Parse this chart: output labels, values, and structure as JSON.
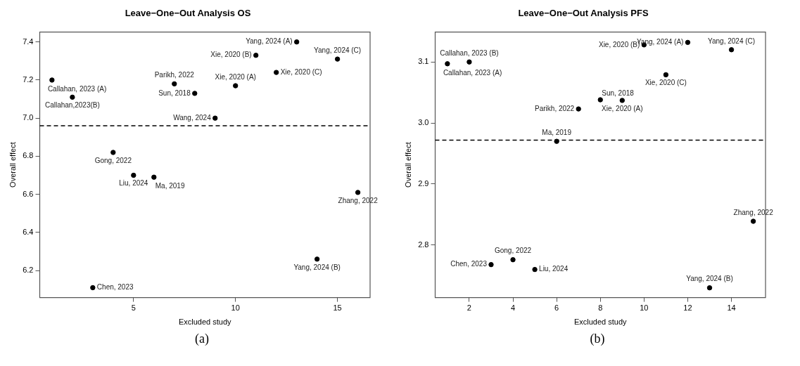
{
  "chart_data": [
    {
      "type": "scatter",
      "title": "Leave−One−Out Analysis OS",
      "xlabel": "Excluded study",
      "ylabel": "Overall effect",
      "x": [
        1,
        2,
        3,
        4,
        5,
        6,
        7,
        8,
        9,
        10,
        11,
        12,
        13,
        14,
        15,
        16
      ],
      "series": [
        {
          "color": "#000000",
          "values": [
            7.2,
            7.11,
            6.11,
            6.82,
            6.7,
            6.69,
            7.18,
            7.13,
            7.0,
            7.17,
            7.33,
            7.24,
            7.4,
            6.26,
            7.31,
            6.61
          ]
        }
      ],
      "xlim": [
        0.4,
        16.6
      ],
      "xticks": [
        5,
        10,
        15
      ],
      "ylim": [
        6.058,
        7.452
      ],
      "yticks": [
        {
          "value": 6.2,
          "label": "6.2"
        },
        {
          "value": 6.4,
          "label": "6.4"
        },
        {
          "value": 6.6,
          "label": "6.6"
        },
        {
          "value": 6.8,
          "label": "6.8"
        },
        {
          "value": 7.0,
          "label": "7.0"
        },
        {
          "value": 7.2,
          "label": "7.2"
        },
        {
          "value": 7.4,
          "label": "7.4"
        }
      ],
      "marker": "circle",
      "grid": false,
      "legend": false,
      "ref_lines": [
        {
          "axis": "y",
          "value": 6.96,
          "line_style": "dashed",
          "color": "#000000"
        }
      ],
      "annotations": [
        {
          "text": "Callahan, 2023 (A)",
          "x": 1,
          "y": 7.2
        },
        {
          "text": "Callahan,2023(B)",
          "x": 2,
          "y": 7.11
        },
        {
          "text": "Chen, 2023",
          "x": 3,
          "y": 6.11
        },
        {
          "text": "Gong, 2022",
          "x": 4,
          "y": 6.82
        },
        {
          "text": "Liu, 2024",
          "x": 5,
          "y": 6.7
        },
        {
          "text": "Ma, 2019",
          "x": 6,
          "y": 6.69
        },
        {
          "text": "Parikh, 2022",
          "x": 7,
          "y": 7.18
        },
        {
          "text": "Sun, 2018",
          "x": 8,
          "y": 7.13
        },
        {
          "text": "Wang, 2024",
          "x": 9,
          "y": 7.0
        },
        {
          "text": "Xie, 2020 (A)",
          "x": 10,
          "y": 7.17
        },
        {
          "text": "Xie, 2020 (B)",
          "x": 11,
          "y": 7.33
        },
        {
          "text": "Xie, 2020 (C)",
          "x": 12,
          "y": 7.24
        },
        {
          "text": "Yang, 2024 (A)",
          "x": 13,
          "y": 7.4
        },
        {
          "text": "Yang, 2024 (B)",
          "x": 14,
          "y": 6.26
        },
        {
          "text": "Yang, 2024 (C)",
          "x": 15,
          "y": 7.31
        },
        {
          "text": "Zhang, 2022",
          "x": 16,
          "y": 6.61
        },
        "(a)"
      ]
    },
    {
      "type": "scatter",
      "title": "Leave−One−Out Analysis PFS",
      "xlabel": "Excluded study",
      "ylabel": "Overall effect",
      "x": [
        1,
        2,
        3,
        4,
        5,
        6,
        7,
        8,
        9,
        10,
        11,
        12,
        13,
        14,
        15
      ],
      "series": [
        {
          "color": "#000000",
          "values": [
            3.097,
            3.1,
            2.768,
            2.776,
            2.76,
            2.97,
            3.023,
            3.038,
            3.037,
            3.128,
            3.079,
            3.132,
            2.73,
            3.12,
            2.839
          ]
        }
      ],
      "xlim": [
        0.44,
        15.56
      ],
      "xticks": [
        2,
        4,
        6,
        8,
        10,
        12,
        14
      ],
      "ylim": [
        2.714,
        3.149
      ],
      "yticks": [
        2.8,
        2.9,
        {
          "value": 3.0,
          "label": "3.0"
        },
        3.1
      ],
      "marker": "circle",
      "grid": false,
      "legend": false,
      "ref_lines": [
        {
          "axis": "y",
          "value": 2.972,
          "line_style": "dashed",
          "color": "#000000"
        }
      ],
      "annotations": [
        {
          "text": "Callahan, 2023 (A)",
          "x": 1,
          "y": 3.097
        },
        {
          "text": "Callahan, 2023 (B)",
          "x": 2,
          "y": 3.1
        },
        {
          "text": "Chen, 2023",
          "x": 3,
          "y": 2.768
        },
        {
          "text": "Gong, 2022",
          "x": 4,
          "y": 2.776
        },
        {
          "text": "Liu, 2024",
          "x": 5,
          "y": 2.76
        },
        {
          "text": "Ma, 2019",
          "x": 6,
          "y": 2.97
        },
        {
          "text": "Parikh, 2022",
          "x": 7,
          "y": 3.023
        },
        {
          "text": "Sun, 2018",
          "x": 8,
          "y": 3.038
        },
        {
          "text": "Xie, 2020 (A)",
          "x": 9,
          "y": 3.037
        },
        {
          "text": "Xie, 2020 (B)",
          "x": 10,
          "y": 3.128
        },
        {
          "text": "Xie, 2020 (C)",
          "x": 11,
          "y": 3.079
        },
        {
          "text": "Yang, 2024 (A)",
          "x": 12,
          "y": 3.132
        },
        {
          "text": "Yang, 2024 (B)",
          "x": 13,
          "y": 2.73
        },
        {
          "text": "Yang, 2024 (C)",
          "x": 14,
          "y": 3.12
        },
        {
          "text": "Zhang, 2022",
          "x": 15,
          "y": 2.839
        },
        "(b)"
      ]
    }
  ]
}
